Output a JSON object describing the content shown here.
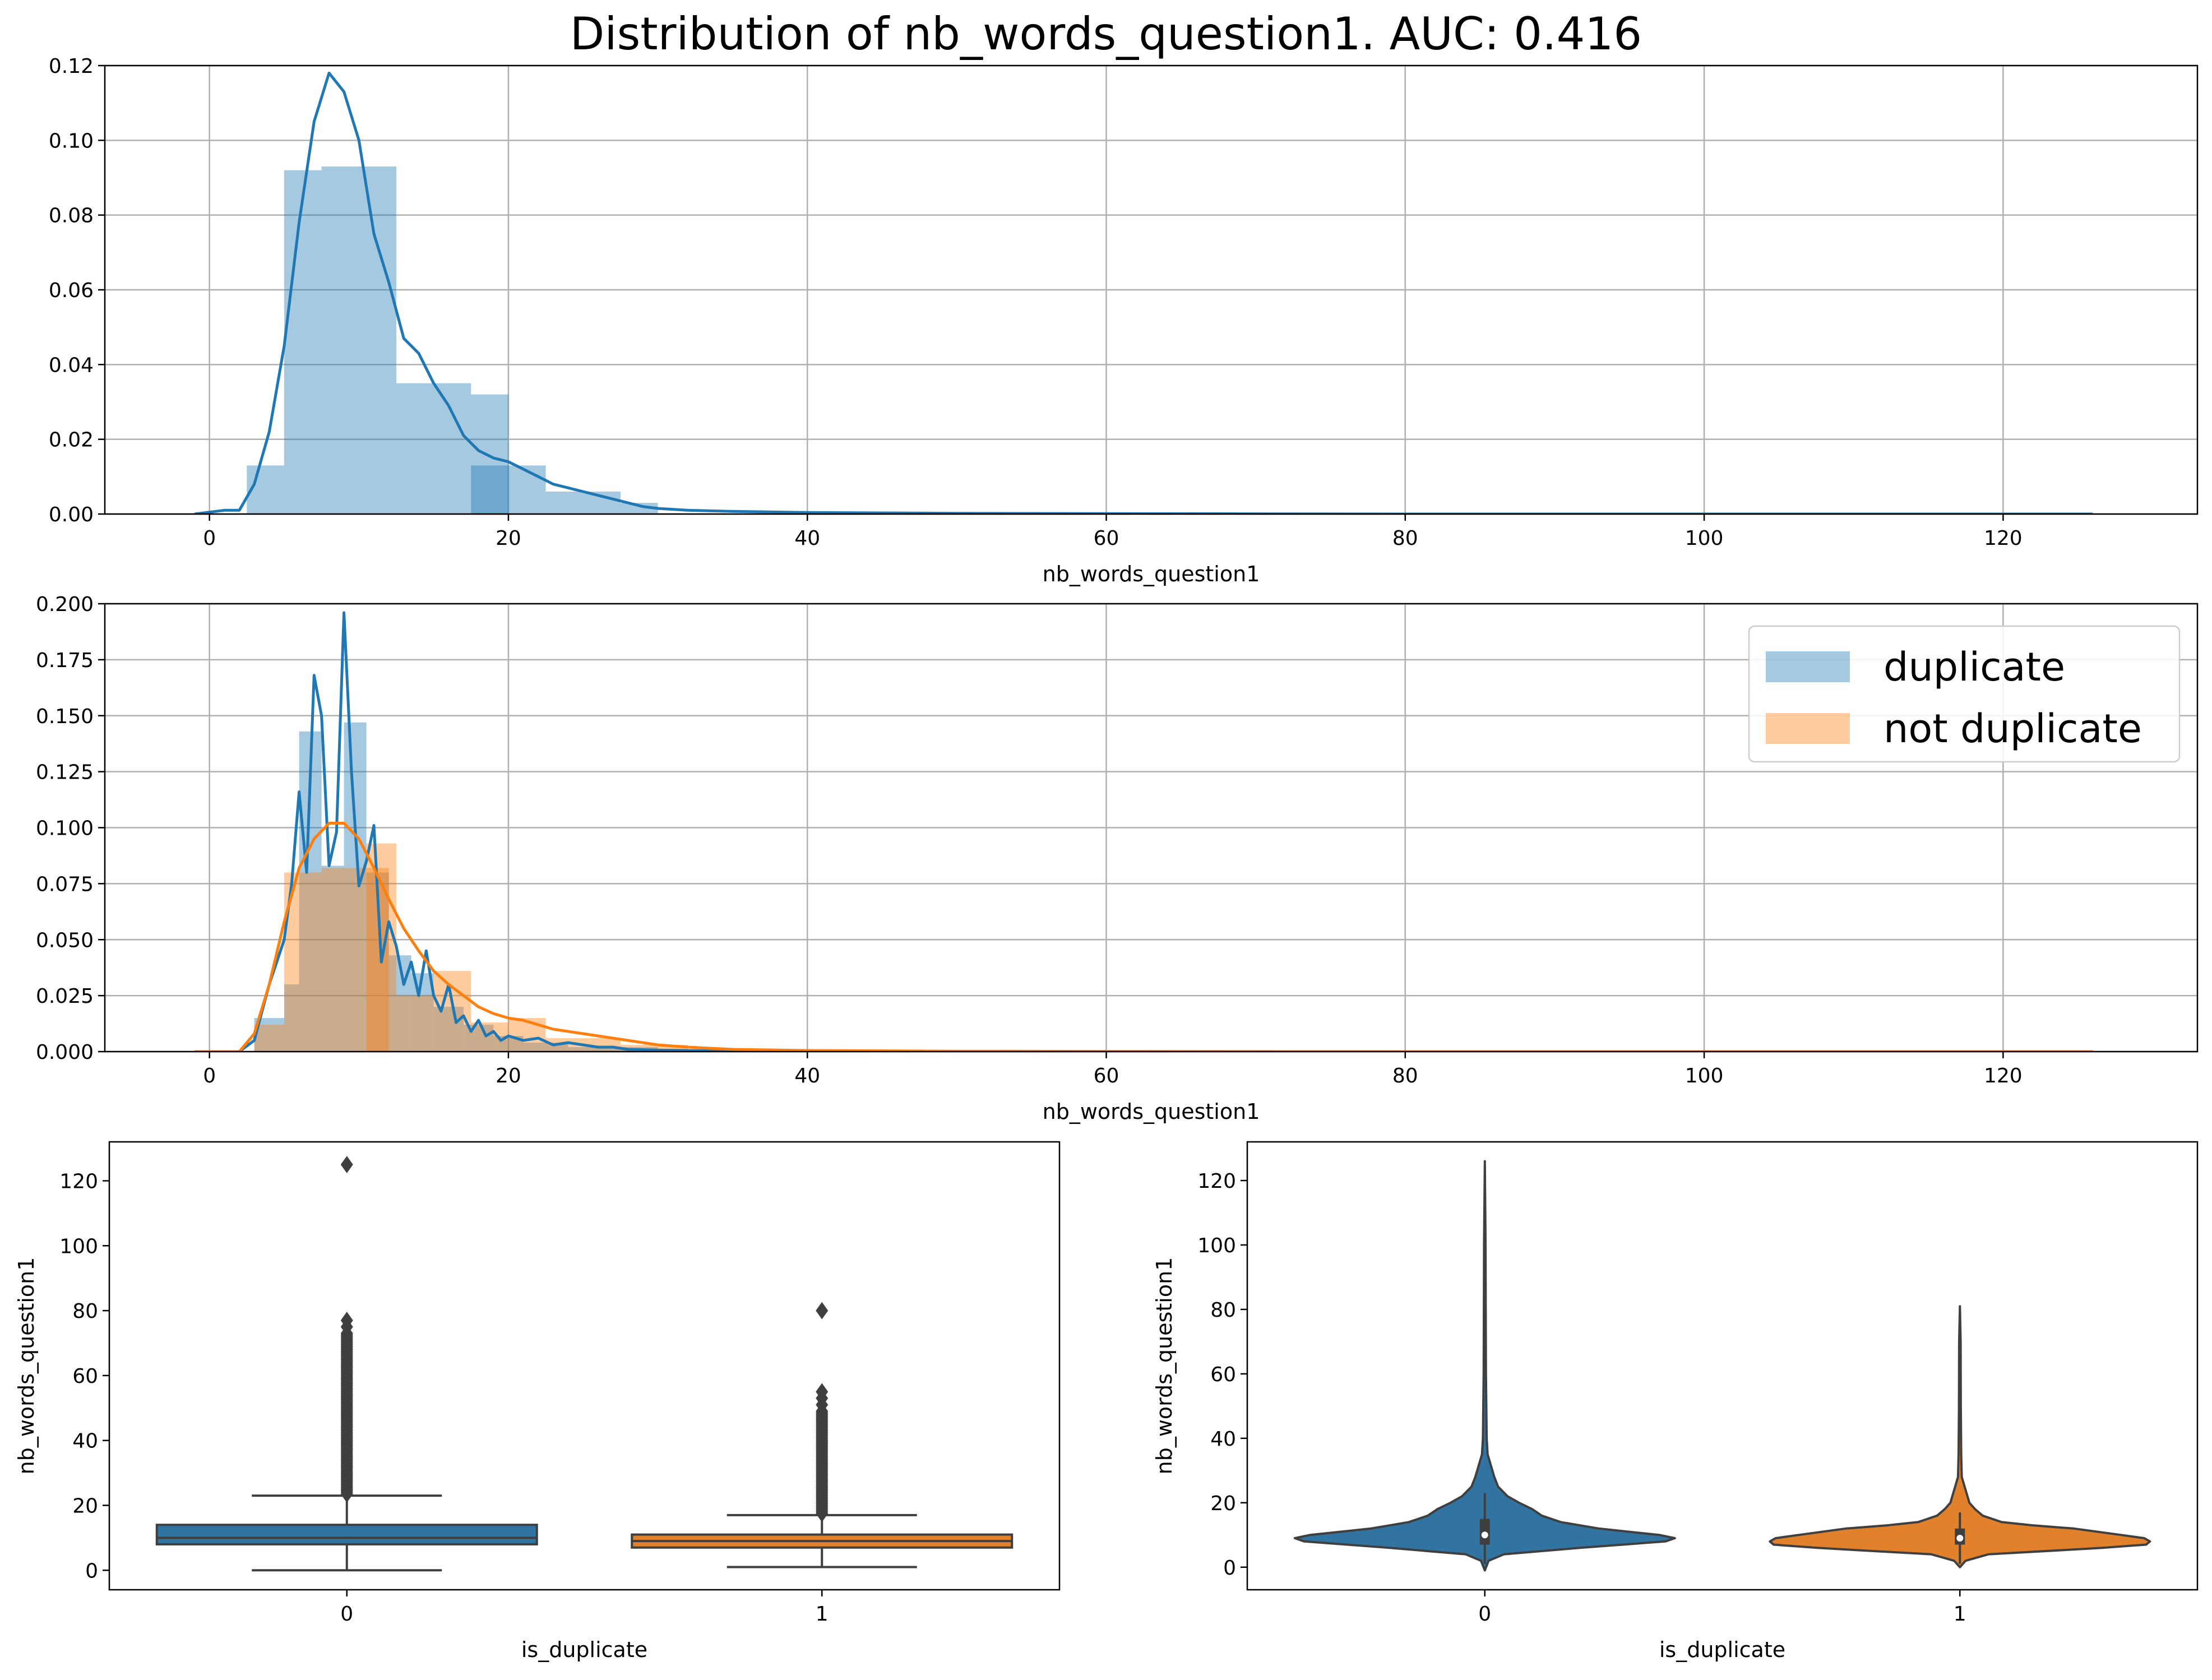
{
  "figure_title": "Distribution of nb_words_question1. AUC: 0.416",
  "colors": {
    "blue": "#1f77b4",
    "orange": "#ff7f0e",
    "blue_hist": "#9ec4e1",
    "orange_hist": "#ffc89a",
    "grid": "#b0b0b0"
  },
  "chart_data": [
    {
      "id": "hist-all",
      "type": "bar",
      "subtype": "histogram+kde",
      "xlabel": "nb_words_question1",
      "ylabel": "",
      "xlim": [
        -7,
        133
      ],
      "ylim": [
        0,
        0.12
      ],
      "xticks": [
        0,
        20,
        40,
        60,
        80,
        100,
        120
      ],
      "yticks": [
        0.0,
        0.02,
        0.04,
        0.06,
        0.08,
        0.1,
        0.12
      ],
      "ytick_labels": [
        "0.00",
        "0.02",
        "0.04",
        "0.06",
        "0.08",
        "0.10",
        "0.12"
      ],
      "grid": true,
      "bars": [
        {
          "x0": 2.5,
          "x1": 5,
          "y": 0.013
        },
        {
          "x0": 5,
          "x1": 7.5,
          "y": 0.092
        },
        {
          "x0": 7.5,
          "x1": 12.5,
          "y": 0.093
        },
        {
          "x0": 12.5,
          "x1": 17.5,
          "y": 0.035
        },
        {
          "x0": 17.5,
          "x1": 20,
          "y": 0.032
        },
        {
          "x0": 17.5,
          "x1": 22.5,
          "y": 0.013
        },
        {
          "x0": 22.5,
          "x1": 27.5,
          "y": 0.006
        },
        {
          "x0": 27.5,
          "x1": 30,
          "y": 0.003
        }
      ],
      "kde": {
        "x": [
          -1,
          1,
          2,
          3,
          4,
          5,
          6,
          7,
          8,
          9,
          10,
          11,
          12,
          13,
          14,
          15,
          16,
          17,
          18,
          19,
          20,
          21,
          22,
          23,
          24,
          25,
          26,
          27,
          28,
          29,
          30,
          32,
          35,
          40,
          50,
          60,
          80,
          100,
          126
        ],
        "y": [
          0,
          0.001,
          0.001,
          0.008,
          0.022,
          0.045,
          0.078,
          0.105,
          0.118,
          0.113,
          0.1,
          0.075,
          0.062,
          0.047,
          0.043,
          0.035,
          0.029,
          0.021,
          0.017,
          0.015,
          0.014,
          0.012,
          0.01,
          0.008,
          0.007,
          0.006,
          0.005,
          0.004,
          0.003,
          0.002,
          0.0015,
          0.001,
          0.0007,
          0.0004,
          0.0002,
          0.0001,
          0,
          0,
          0
        ]
      }
    },
    {
      "id": "hist-split",
      "type": "bar",
      "subtype": "overlaid histogram+kde",
      "xlabel": "nb_words_question1",
      "ylabel": "",
      "xlim": [
        -7,
        133
      ],
      "ylim": [
        0,
        0.2
      ],
      "xticks": [
        0,
        20,
        40,
        60,
        80,
        100,
        120
      ],
      "yticks": [
        0.0,
        0.025,
        0.05,
        0.075,
        0.1,
        0.125,
        0.15,
        0.175,
        0.2
      ],
      "ytick_labels": [
        "0.000",
        "0.025",
        "0.050",
        "0.075",
        "0.100",
        "0.125",
        "0.150",
        "0.175",
        "0.200"
      ],
      "grid": true,
      "legend": {
        "position": "upper-right",
        "entries": [
          "duplicate",
          "not duplicate"
        ]
      },
      "series": [
        {
          "name": "duplicate",
          "color": "blue",
          "bars": [
            {
              "x0": 3,
              "x1": 5,
              "y": 0.015
            },
            {
              "x0": 5,
              "x1": 6,
              "y": 0.03
            },
            {
              "x0": 6,
              "x1": 7.5,
              "y": 0.143
            },
            {
              "x0": 7.5,
              "x1": 9,
              "y": 0.083
            },
            {
              "x0": 9,
              "x1": 10.5,
              "y": 0.147
            },
            {
              "x0": 10.5,
              "x1": 12,
              "y": 0.08
            },
            {
              "x0": 12,
              "x1": 13.5,
              "y": 0.043
            },
            {
              "x0": 13.5,
              "x1": 15,
              "y": 0.035
            },
            {
              "x0": 15,
              "x1": 17,
              "y": 0.02
            },
            {
              "x0": 17,
              "x1": 19,
              "y": 0.012
            },
            {
              "x0": 19,
              "x1": 21,
              "y": 0.007
            },
            {
              "x0": 21,
              "x1": 24,
              "y": 0.004
            },
            {
              "x0": 24,
              "x1": 30,
              "y": 0.002
            }
          ],
          "kde": {
            "x": [
              2,
              3,
              4,
              5,
              5.5,
              6,
              6.5,
              7,
              7.5,
              8,
              8.5,
              9,
              9.5,
              10,
              10.5,
              11,
              11.5,
              12,
              12.5,
              13,
              13.5,
              14,
              14.5,
              15,
              15.5,
              16,
              16.5,
              17,
              17.5,
              18,
              18.5,
              19,
              19.5,
              20,
              21,
              22,
              23,
              24,
              25,
              26,
              27,
              28,
              30,
              35,
              40,
              126
            ],
            "y": [
              0,
              0.005,
              0.03,
              0.05,
              0.075,
              0.116,
              0.08,
              0.168,
              0.15,
              0.083,
              0.098,
              0.196,
              0.125,
              0.074,
              0.085,
              0.101,
              0.04,
              0.058,
              0.047,
              0.03,
              0.04,
              0.025,
              0.045,
              0.025,
              0.018,
              0.03,
              0.013,
              0.016,
              0.009,
              0.014,
              0.007,
              0.009,
              0.005,
              0.007,
              0.005,
              0.006,
              0.003,
              0.004,
              0.003,
              0.002,
              0.002,
              0.001,
              0.0007,
              0.0002,
              0,
              0
            ]
          }
        },
        {
          "name": "not duplicate",
          "color": "orange",
          "bars": [
            {
              "x0": 3,
              "x1": 5,
              "y": 0.012
            },
            {
              "x0": 5,
              "x1": 7.5,
              "y": 0.08
            },
            {
              "x0": 7.5,
              "x1": 12,
              "y": 0.082
            },
            {
              "x0": 10.5,
              "x1": 12.5,
              "y": 0.093
            },
            {
              "x0": 12.5,
              "x1": 15,
              "y": 0.025
            },
            {
              "x0": 15,
              "x1": 17.5,
              "y": 0.036
            },
            {
              "x0": 17.5,
              "x1": 20,
              "y": 0.013
            },
            {
              "x0": 20,
              "x1": 22.5,
              "y": 0.015
            },
            {
              "x0": 22.5,
              "x1": 27.5,
              "y": 0.006
            },
            {
              "x0": 27.5,
              "x1": 32,
              "y": 0.003
            }
          ],
          "kde": {
            "x": [
              -1,
              2,
              3,
              4,
              5,
              6,
              7,
              8,
              9,
              10,
              11,
              12,
              13,
              14,
              15,
              16,
              17,
              18,
              19,
              20,
              21,
              22,
              23,
              24,
              25,
              26,
              27,
              28,
              30,
              32,
              35,
              40,
              50,
              60,
              80,
              100,
              126
            ],
            "y": [
              0,
              0,
              0.008,
              0.03,
              0.058,
              0.082,
              0.095,
              0.102,
              0.102,
              0.095,
              0.082,
              0.068,
              0.055,
              0.045,
              0.036,
              0.03,
              0.025,
              0.02,
              0.017,
              0.015,
              0.014,
              0.012,
              0.01,
              0.009,
              0.008,
              0.007,
              0.006,
              0.005,
              0.003,
              0.002,
              0.001,
              0.0005,
              0.0002,
              0.0001,
              0,
              0,
              0
            ]
          }
        }
      ]
    },
    {
      "id": "boxplot",
      "type": "box",
      "xlabel": "is_duplicate",
      "ylabel": "nb_words_question1",
      "categories": [
        "0",
        "1"
      ],
      "ylim": [
        -6,
        132
      ],
      "yticks": [
        0,
        20,
        40,
        60,
        80,
        100,
        120
      ],
      "grid": false,
      "boxes": [
        {
          "category": "0",
          "color": "blue",
          "whislo": 0,
          "q1": 8,
          "med": 10,
          "q3": 14,
          "whishi": 23,
          "outlier_top": 125,
          "fliers_from": 23,
          "fliers_to": 73,
          "extra_fliers": [
            75,
            77
          ]
        },
        {
          "category": "1",
          "color": "orange",
          "whislo": 1,
          "q1": 7,
          "med": 9,
          "q3": 11,
          "whishi": 17,
          "outlier_top": 80,
          "fliers_from": 17,
          "fliers_to": 49,
          "extra_fliers": [
            51,
            53,
            55
          ]
        }
      ]
    },
    {
      "id": "violin",
      "type": "violin",
      "xlabel": "is_duplicate",
      "ylabel": "nb_words_question1",
      "categories": [
        "0",
        "1"
      ],
      "ylim": [
        -7,
        132
      ],
      "yticks": [
        0,
        20,
        40,
        60,
        80,
        100,
        120
      ],
      "grid": false,
      "violins": [
        {
          "category": "0",
          "color": "blue",
          "q1": 7,
          "med": 10,
          "q3": 15,
          "whislo": 1,
          "whishi": 23,
          "profile": [
            [
              -1,
              0.0
            ],
            [
              2,
              0.02
            ],
            [
              4,
              0.1
            ],
            [
              6,
              0.5
            ],
            [
              8,
              0.95
            ],
            [
              9,
              1.0
            ],
            [
              10,
              0.92
            ],
            [
              12,
              0.6
            ],
            [
              14,
              0.4
            ],
            [
              16,
              0.3
            ],
            [
              18,
              0.25
            ],
            [
              20,
              0.18
            ],
            [
              22,
              0.12
            ],
            [
              25,
              0.07
            ],
            [
              28,
              0.05
            ],
            [
              30,
              0.04
            ],
            [
              35,
              0.015
            ],
            [
              40,
              0.01
            ],
            [
              60,
              0.006
            ],
            [
              80,
              0.005
            ],
            [
              100,
              0.004
            ],
            [
              126,
              0.0
            ]
          ]
        },
        {
          "category": "1",
          "color": "orange",
          "q1": 7,
          "med": 9,
          "q3": 12,
          "whislo": 1,
          "whishi": 17,
          "profile": [
            [
              0,
              0.0
            ],
            [
              2,
              0.03
            ],
            [
              4,
              0.15
            ],
            [
              6,
              0.75
            ],
            [
              7,
              0.98
            ],
            [
              8,
              1.0
            ],
            [
              9,
              0.97
            ],
            [
              10,
              0.85
            ],
            [
              12,
              0.6
            ],
            [
              13,
              0.38
            ],
            [
              14,
              0.22
            ],
            [
              16,
              0.12
            ],
            [
              18,
              0.08
            ],
            [
              20,
              0.05
            ],
            [
              22,
              0.04
            ],
            [
              25,
              0.025
            ],
            [
              28,
              0.01
            ],
            [
              35,
              0.007
            ],
            [
              50,
              0.005
            ],
            [
              70,
              0.004
            ],
            [
              81,
              0.0
            ]
          ]
        }
      ]
    }
  ]
}
